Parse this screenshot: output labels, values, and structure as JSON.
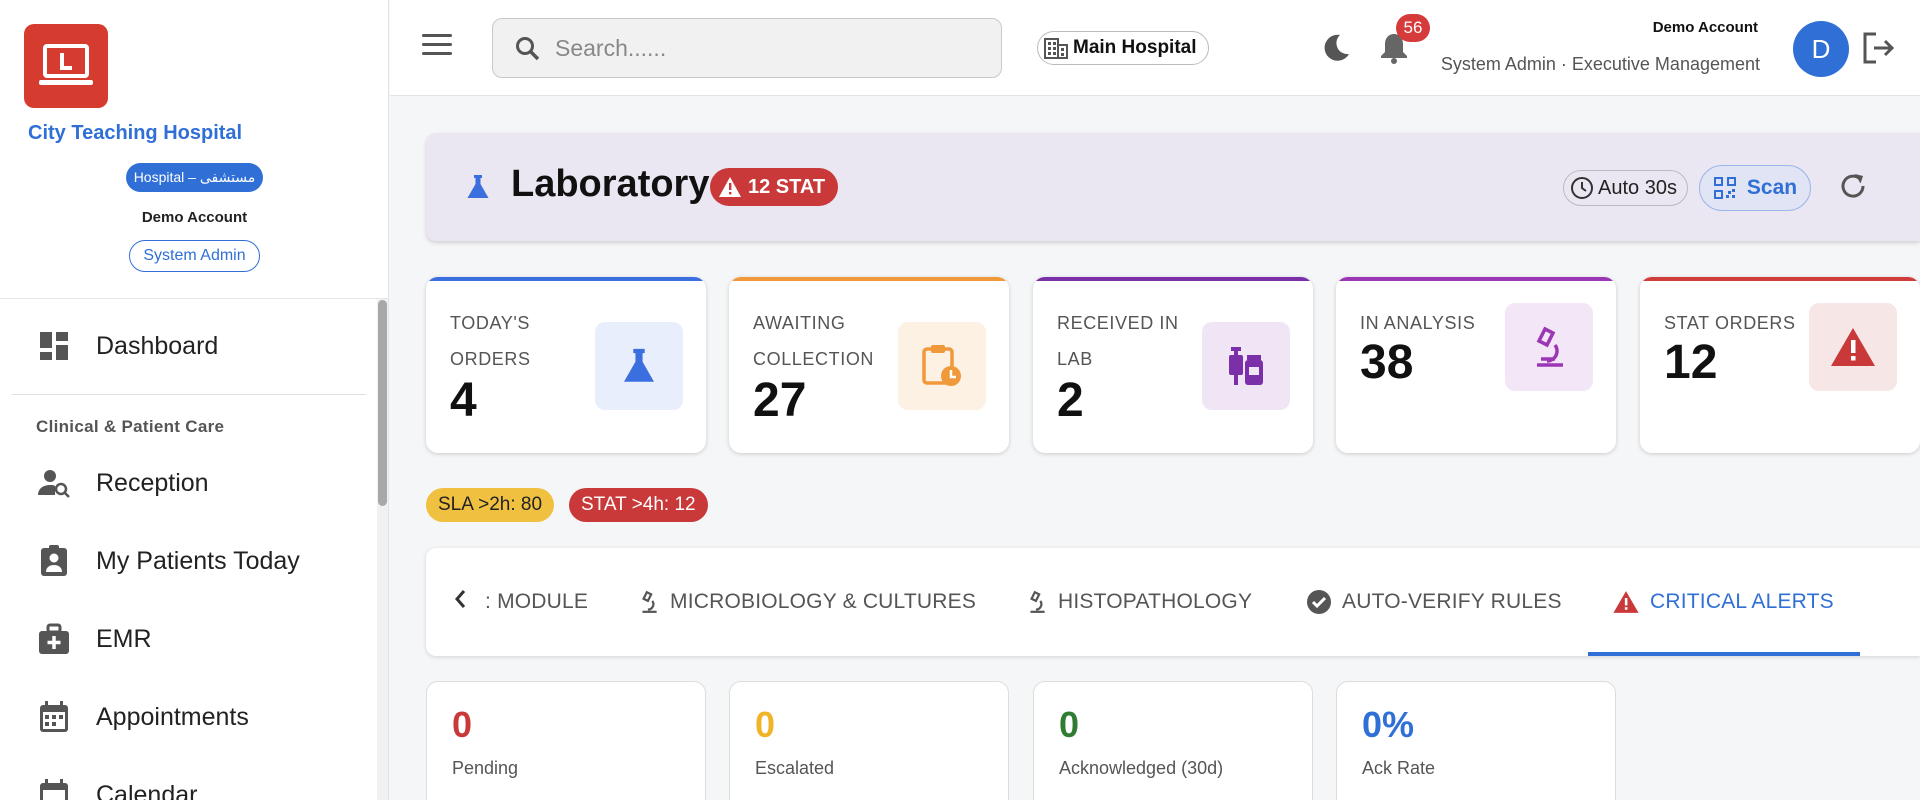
{
  "sidebar": {
    "hospital_name": "City Teaching Hospital",
    "hospital_type": "Hospital – مستشفى",
    "account_name": "Demo Account",
    "role": "System Admin",
    "section_clinical": "Clinical & Patient Care",
    "items": [
      {
        "label": "Dashboard",
        "icon": "dashboard-icon"
      },
      {
        "label": "Reception",
        "icon": "person-search-icon"
      },
      {
        "label": "My Patients Today",
        "icon": "patient-badge-icon"
      },
      {
        "label": "EMR",
        "icon": "medical-bag-icon"
      },
      {
        "label": "Appointments",
        "icon": "calendar-grid-icon"
      },
      {
        "label": "Calendar",
        "icon": "calendar-icon"
      }
    ]
  },
  "topbar": {
    "search_placeholder": "Search......",
    "branch": "Main Hospital",
    "notification_count": "56",
    "user_name": "Demo Account",
    "user_role": "System Admin · Executive Management",
    "avatar_initial": "D"
  },
  "module": {
    "title": "Laboratory",
    "stat_badge": "12 STAT",
    "auto_refresh": "Auto 30s",
    "scan_label": "Scan"
  },
  "kpis": [
    {
      "label": "Today's Orders",
      "value": "4",
      "color": "#3b6fe0",
      "icon_bg": "#e8eefc"
    },
    {
      "label": "Awaiting Collection",
      "value": "27",
      "color": "#f0993a",
      "icon_bg": "#fdf1e4"
    },
    {
      "label": "Received in Lab",
      "value": "2",
      "color": "#7b2fa8",
      "icon_bg": "#efe5f5"
    },
    {
      "label": "In Analysis",
      "value": "38",
      "color": "#9b36b5",
      "icon_bg": "#f3e6f7"
    },
    {
      "label": "STAT Orders",
      "value": "12",
      "color": "#d03b3b",
      "icon_bg": "#f7e6e6"
    }
  ],
  "sla": {
    "sla_chip": "SLA >2h: 80",
    "stat_chip": "STAT >4h: 12"
  },
  "tabs": [
    {
      "label": ": Module",
      "icon": ""
    },
    {
      "label": "Microbiology & Cultures",
      "icon": "microscope-icon"
    },
    {
      "label": "Histopathology",
      "icon": "microscope-icon"
    },
    {
      "label": "Auto-Verify Rules",
      "icon": "check-circle-icon"
    },
    {
      "label": "Critical Alerts",
      "icon": "warning-icon",
      "active": true
    }
  ],
  "alert_stats": [
    {
      "value": "0",
      "label": "Pending",
      "color": "#c93939"
    },
    {
      "value": "0",
      "label": "Escalated",
      "color": "#f0b429"
    },
    {
      "value": "0",
      "label": "Acknowledged (30d)",
      "color": "#2e7d32"
    },
    {
      "value": "0%",
      "label": "Ack Rate",
      "color": "#2f6fd6"
    }
  ],
  "colors": {
    "accent": "#2f6fd6",
    "logo": "#d63b2f",
    "danger": "#c93939",
    "warning": "#f0c040",
    "header_bg": "#ebe7f2"
  }
}
